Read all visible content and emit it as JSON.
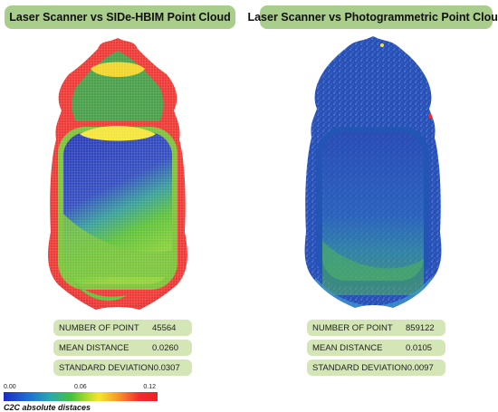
{
  "panels": [
    {
      "title": "Laser Scanner vs SIDe-HBIM Point Cloud",
      "stats": [
        {
          "label": "NUMBER OF POINT",
          "value": "45564"
        },
        {
          "label": "MEAN DISTANCE",
          "value": "0.0260"
        },
        {
          "label": "STANDARD DEVIATION",
          "value": "0.0307"
        }
      ]
    },
    {
      "title": "Laser Scanner vs Photogrammetric Point Cloud",
      "stats": [
        {
          "label": "NUMBER OF POINT",
          "value": "859122"
        },
        {
          "label": "MEAN DISTANCE",
          "value": "0.0105"
        },
        {
          "label": "STANDARD DEVIATION",
          "value": "0.0097"
        }
      ]
    }
  ],
  "legend": {
    "ticks": [
      "0.00",
      "0.06",
      "0.12"
    ],
    "caption": "C2C absolute distaces"
  },
  "colors": {
    "title_bg": "#a9cd8a",
    "stat_bg": "#d4e6b5",
    "scale_low": "#1a2bbf",
    "scale_mid": "#f7e52c",
    "scale_high": "#ef2d2d"
  }
}
